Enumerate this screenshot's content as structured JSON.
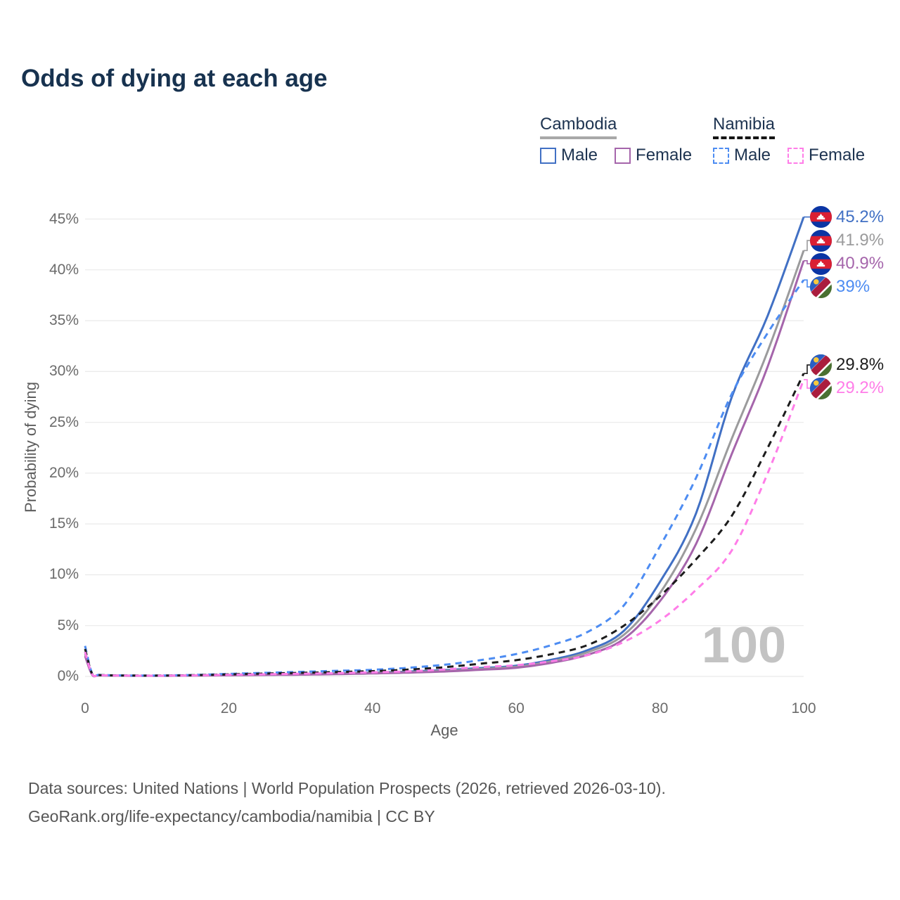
{
  "title": "Odds of dying at each age",
  "legend": {
    "groups": [
      {
        "name": "Cambodia",
        "line_style": "solid",
        "underline_color": "#a8a8a8",
        "items": [
          {
            "label": "Male",
            "color": "#4170c4"
          },
          {
            "label": "Female",
            "color": "#a565ab"
          }
        ]
      },
      {
        "name": "Namibia",
        "line_style": "dashed",
        "underline_color": "#151515",
        "items": [
          {
            "label": "Male",
            "color": "#4d8cf2"
          },
          {
            "label": "Female",
            "color": "#ff7de8"
          }
        ]
      }
    ]
  },
  "axes": {
    "y_title": "Probability of dying",
    "x_title": "Age",
    "y_ticks": [
      "0%",
      "5%",
      "10%",
      "15%",
      "20%",
      "25%",
      "30%",
      "35%",
      "40%",
      "45%"
    ],
    "x_ticks": [
      "0",
      "20",
      "40",
      "60",
      "80",
      "100"
    ]
  },
  "watermark": "100",
  "footer": {
    "line1": "Data sources: United Nations | World Population Prospects (2026, retrieved 2026-03-10).",
    "line2": "GeoRank.org/life-expectancy/cambodia/namibia | CC BY"
  },
  "chart_data": {
    "type": "line",
    "title": "Odds of dying at each age",
    "xlabel": "Age",
    "ylabel": "Probability of dying",
    "x_range": [
      0,
      100
    ],
    "y_range_percent": [
      0,
      45
    ],
    "grid": "horizontal",
    "legend_position": "top-right",
    "ages": [
      0,
      1,
      2,
      5,
      10,
      15,
      20,
      25,
      30,
      35,
      40,
      45,
      50,
      55,
      60,
      65,
      70,
      75,
      80,
      85,
      90,
      95,
      100
    ],
    "series": [
      {
        "name": "Cambodia Male",
        "country": "Cambodia",
        "sex": "Male",
        "dash": "solid",
        "color": "#4170c4",
        "flag": "cambodia",
        "end_label": "45.2%",
        "values": [
          2.4,
          0.18,
          0.12,
          0.08,
          0.07,
          0.1,
          0.16,
          0.2,
          0.24,
          0.3,
          0.38,
          0.48,
          0.62,
          0.82,
          1.05,
          1.65,
          2.6,
          4.5,
          9.3,
          16.0,
          27.5,
          35.5,
          45.2
        ]
      },
      {
        "name": "Cambodia Both sexes",
        "country": "Cambodia",
        "sex": "Both",
        "dash": "solid",
        "color": "#9b9b9c",
        "flag": "cambodia",
        "end_label": "41.9%",
        "values": [
          2.2,
          0.16,
          0.11,
          0.07,
          0.06,
          0.09,
          0.13,
          0.17,
          0.2,
          0.26,
          0.33,
          0.42,
          0.55,
          0.73,
          0.95,
          1.5,
          2.4,
          4.1,
          8.2,
          14.5,
          23.4,
          32.0,
          41.9
        ]
      },
      {
        "name": "Cambodia Female",
        "country": "Cambodia",
        "sex": "Female",
        "dash": "solid",
        "color": "#a565ab",
        "flag": "cambodia",
        "end_label": "40.9%",
        "values": [
          2.0,
          0.15,
          0.1,
          0.07,
          0.06,
          0.08,
          0.11,
          0.14,
          0.17,
          0.22,
          0.29,
          0.37,
          0.48,
          0.65,
          0.85,
          1.35,
          2.15,
          3.7,
          7.4,
          13.0,
          21.9,
          30.5,
          40.9
        ]
      },
      {
        "name": "Namibia Male",
        "country": "Namibia",
        "sex": "Male",
        "dash": "dashed",
        "color": "#4d8cf2",
        "flag": "namibia",
        "end_label": "39%",
        "values": [
          3.0,
          0.25,
          0.15,
          0.1,
          0.09,
          0.14,
          0.25,
          0.35,
          0.45,
          0.55,
          0.65,
          0.85,
          1.15,
          1.6,
          2.2,
          3.1,
          4.4,
          7.0,
          12.8,
          19.5,
          27.8,
          33.8,
          39.0
        ]
      },
      {
        "name": "Namibia Both sexes",
        "country": "Namibia",
        "sex": "Both",
        "dash": "dashed",
        "color": "#1c1c1c",
        "flag": "namibia",
        "end_label": "29.8%",
        "values": [
          2.7,
          0.22,
          0.13,
          0.09,
          0.08,
          0.12,
          0.2,
          0.28,
          0.35,
          0.43,
          0.52,
          0.67,
          0.9,
          1.25,
          1.6,
          2.2,
          3.1,
          5.0,
          7.9,
          11.5,
          15.8,
          22.5,
          29.8
        ]
      },
      {
        "name": "Namibia Female",
        "country": "Namibia",
        "sex": "Female",
        "dash": "dashed",
        "color": "#ff7de8",
        "flag": "namibia",
        "end_label": "29.2%",
        "values": [
          2.4,
          0.2,
          0.12,
          0.08,
          0.07,
          0.1,
          0.16,
          0.21,
          0.26,
          0.32,
          0.4,
          0.5,
          0.68,
          0.92,
          1.1,
          1.5,
          2.1,
          3.4,
          5.5,
          8.5,
          12.4,
          20.0,
          29.2
        ]
      }
    ],
    "flag_colors": {
      "cambodia": {
        "blue": "#0b35a4",
        "red": "#da1f33",
        "temple": "#ffffff"
      },
      "namibia": {
        "blue": "#2a5fc4",
        "red": "#aa1e3e",
        "green": "#4a7031",
        "white": "#ffffff",
        "sun": "#f7c83d"
      }
    }
  }
}
